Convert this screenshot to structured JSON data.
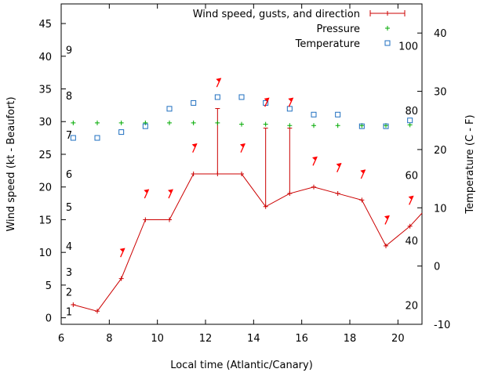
{
  "chart_data": {
    "type": "line",
    "xlabel": "Local time (Atlantic/Canary)",
    "ylabel": "Wind speed (kt - Beaufort)",
    "y2label": "Temperature (C - F)",
    "xlim": [
      6,
      21
    ],
    "ylim": [
      -1,
      48
    ],
    "y2lim": [
      -10,
      45
    ],
    "x_ticks": [
      6,
      8,
      10,
      12,
      14,
      16,
      18,
      20
    ],
    "y_ticks": [
      0,
      5,
      10,
      15,
      20,
      25,
      30,
      35,
      40,
      45
    ],
    "y2_ticks": [
      -10,
      0,
      10,
      20,
      30,
      40
    ],
    "grid": false,
    "legend_position": "top-right",
    "series": [
      {
        "name": "Wind speed, gusts, and direction",
        "color": "#cc0000",
        "x": [
          6.5,
          7.5,
          8.5,
          9.5,
          10.5,
          11.5,
          12.5,
          13.5,
          14.5,
          15.5,
          16.5,
          17.5,
          18.5,
          19.5,
          20.5,
          21
        ],
        "values": [
          2,
          1,
          6,
          15,
          15,
          22,
          22,
          22,
          17,
          19,
          20,
          19,
          18,
          11,
          14,
          16
        ],
        "gust_top": [
          null,
          null,
          null,
          null,
          null,
          null,
          32,
          null,
          29,
          29,
          null,
          null,
          null,
          null,
          null,
          null
        ]
      },
      {
        "name": "Pressure",
        "color": "#00aa00",
        "x": [
          6.5,
          7.5,
          8.5,
          9.5,
          10.5,
          11.5,
          12.5,
          13.5,
          14.5,
          15.5,
          16.5,
          17.5,
          18.5,
          19.5,
          20.5
        ],
        "values": [
          29.8,
          29.8,
          29.8,
          29.8,
          29.8,
          29.8,
          29.8,
          29.6,
          29.6,
          29.4,
          29.4,
          29.4,
          29.4,
          29.4,
          29.5
        ]
      },
      {
        "name": "Temperature",
        "color": "#1f6fc0",
        "axis": "y2",
        "x": [
          6.5,
          7.5,
          8.5,
          9.5,
          10.5,
          11.5,
          12.5,
          13.5,
          14.5,
          15.5,
          16.5,
          17.5,
          18.5,
          19.5,
          20.5
        ],
        "values": [
          22.0,
          22.0,
          23.0,
          24.0,
          27.0,
          28.0,
          29.0,
          29.0,
          28.0,
          27.0,
          26.0,
          26.0,
          24.0,
          24.0,
          25.0
        ]
      }
    ],
    "wind_arrows": {
      "color": "#ff0000",
      "x": [
        8.5,
        9.5,
        10.5,
        11.5,
        12.5,
        13.5,
        14.5,
        15.5,
        16.5,
        17.5,
        18.5,
        19.5,
        20.5
      ],
      "y": [
        10,
        19,
        19,
        26,
        36,
        26,
        33,
        33,
        24,
        23,
        22,
        15,
        18
      ]
    },
    "beaufort_labels": {
      "values": [
        "1",
        "2",
        "3",
        "4",
        "5",
        "6",
        "7",
        "8",
        "9"
      ],
      "y": [
        1,
        4,
        7,
        11,
        17,
        22,
        28,
        34,
        41
      ]
    },
    "fahrenheit_labels": {
      "values": [
        "20",
        "40",
        "60",
        "80",
        "100"
      ],
      "y2": [
        -6.7,
        4.4,
        15.6,
        26.7,
        37.8
      ]
    }
  }
}
